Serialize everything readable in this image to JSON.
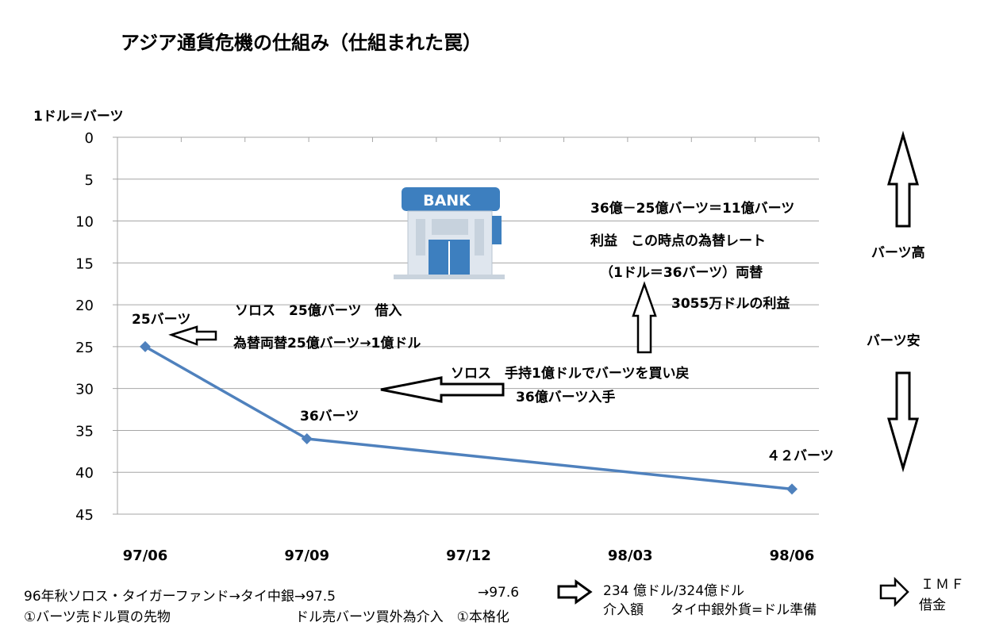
{
  "title": "アジア通貨危機の仕組み（仕組まれた罠）",
  "chart_data": {
    "type": "line",
    "ylabel": "1ドル＝バーツ",
    "categories": [
      "97/06",
      "97/09",
      "97/12",
      "98/03",
      "98/06"
    ],
    "yticks": [
      0,
      5,
      10,
      15,
      20,
      25,
      30,
      35,
      40,
      45
    ],
    "ylim": [
      0,
      45
    ],
    "y_inverted": true,
    "grid": true,
    "series": [
      {
        "points": [
          {
            "x": "97/06",
            "y": 25
          },
          {
            "x": "97/09",
            "y": 36
          },
          {
            "x": "98/06",
            "y": 42
          }
        ]
      }
    ],
    "data_labels": [
      "25バーツ",
      "36バーツ",
      "４２バーツ"
    ],
    "line_color": "#4f81bd"
  },
  "annotations": {
    "borrow_line1": "ソロス　25億バーツ　借入",
    "borrow_line2": "為替両替25億バーツ→1億ドル",
    "buyback_line1": "ソロス　手持1億ドルでバーツを買い戻",
    "buyback_line2": "36億バーツ入手",
    "profit_line1": "36億－25億バーツ＝11億バーツ",
    "profit_line2": "利益　この時点の為替レート",
    "profit_line3": "（1ドル＝36バーツ）両替",
    "profit_line4": "3055万ドルの利益",
    "baht_high": "バーツ高",
    "baht_low": "バーツ安",
    "bank_sign": "BANK"
  },
  "footer": {
    "line1_left": "96年秋ソロス・タイガーファンド→タイ中銀→97.5",
    "line1_mid": "→97.6",
    "line2_left": "①バーツ売ドル買の先物",
    "line2_mid": "ドル売バーツ買外為介入　①本格化",
    "intervention_line1": "234 億ドル/324億ドル",
    "intervention_line2": "介入額　　タイ中銀外貨=ドル準備",
    "imf_line1": "ＩＭＦ",
    "imf_line2": "借金"
  }
}
